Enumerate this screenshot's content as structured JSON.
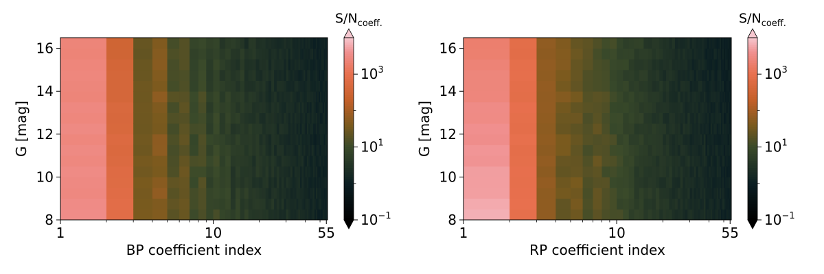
{
  "chart_data": [
    {
      "type": "heatmap",
      "title": "",
      "xlabel": "BP coefficient index",
      "ylabel": "G [mag]",
      "xscale": "log",
      "xlim": [
        1,
        55
      ],
      "ylim": [
        8,
        16.5
      ],
      "xticks": [
        {
          "value": 1,
          "label": "1"
        },
        {
          "value": 10,
          "label": "10"
        },
        {
          "value": 55,
          "label": "55"
        }
      ],
      "yticks": [
        {
          "value": 8,
          "label": "8"
        },
        {
          "value": 10,
          "label": "10"
        },
        {
          "value": 12,
          "label": "12"
        },
        {
          "value": 14,
          "label": "14"
        },
        {
          "value": 16,
          "label": "16"
        }
      ],
      "grid": false,
      "colorbar": {
        "label": "S/N",
        "label_sub": "coeff.",
        "scale": "log",
        "range": [
          0.1,
          10000
        ],
        "ticks": [
          {
            "value": 0.1,
            "base": "10",
            "exp": "−1"
          },
          {
            "value": 10,
            "base": "10",
            "exp": "1"
          },
          {
            "value": 1000,
            "base": "10",
            "exp": "3"
          }
        ],
        "extend": "both"
      },
      "g_bins": [
        8.0,
        8.5,
        9.0,
        9.5,
        10.0,
        10.5,
        11.0,
        11.5,
        12.0,
        12.5,
        13.0,
        13.5,
        14.0,
        14.5,
        15.0,
        15.5,
        16.0
      ],
      "g_bin_width": 0.5,
      "coeff_log10_sn_at_g16": [
        3.4,
        2.5,
        1.4,
        1.7,
        1.1,
        1.2,
        0.9,
        1.0,
        0.7,
        0.9,
        0.6,
        0.7,
        0.6,
        0.5,
        0.6,
        0.4,
        0.5,
        0.5,
        0.4,
        0.4,
        0.4,
        0.4,
        0.3,
        0.4,
        0.3,
        0.3,
        0.3,
        0.3,
        0.3,
        0.3,
        0.2,
        0.3,
        0.2,
        0.2,
        0.2,
        0.2,
        0.2,
        0.2,
        0.2,
        0.2,
        0.2,
        0.2,
        0.1,
        0.2,
        0.1,
        0.1,
        0.1,
        0.1,
        0.1,
        0.1,
        0.1,
        0.1,
        0.1,
        0.1,
        0.1
      ],
      "coeff_log10_sn_at_g8": [
        3.5,
        2.9,
        1.6,
        1.7,
        1.3,
        1.4,
        1.1,
        1.2,
        0.9,
        1.0,
        0.8,
        0.9,
        0.6,
        0.8,
        0.6,
        0.7,
        0.6,
        0.5,
        0.6,
        0.5,
        0.5,
        0.5,
        0.4,
        0.5,
        0.4,
        0.4,
        0.4,
        0.4,
        0.3,
        0.4,
        0.3,
        0.3,
        0.3,
        0.3,
        0.3,
        0.3,
        0.2,
        0.3,
        0.2,
        0.2,
        0.2,
        0.2,
        0.2,
        0.2,
        0.2,
        0.1,
        0.2,
        0.1,
        0.1,
        0.1,
        0.1,
        0.1,
        0.1,
        0.1,
        0.0
      ],
      "coeff_g_slope": [
        0.08,
        0.03,
        0.03,
        0.02,
        0.03,
        0.03,
        0.03,
        0.03,
        0.03,
        0.02,
        0.03,
        0.03,
        0.02,
        0.03,
        0.02,
        0.03,
        0.02,
        0.02,
        0.02,
        0.02,
        0.02,
        0.02,
        0.02,
        0.02,
        0.02,
        0.02,
        0.02,
        0.02,
        0.02,
        0.02,
        0.02,
        0.02,
        0.02,
        0.02,
        0.02,
        0.02,
        0.02,
        0.02,
        0.02,
        0.02,
        0.02,
        0.02,
        0.02,
        0.02,
        0.02,
        0.02,
        0.02,
        0.02,
        0.02,
        0.02,
        0.02,
        0.02,
        0.02,
        0.02,
        0.02
      ]
    },
    {
      "type": "heatmap",
      "title": "",
      "xlabel": "RP coefficient index",
      "ylabel": "G [mag]",
      "xscale": "log",
      "xlim": [
        1,
        55
      ],
      "ylim": [
        8,
        16.5
      ],
      "xticks": [
        {
          "value": 1,
          "label": "1"
        },
        {
          "value": 10,
          "label": "10"
        },
        {
          "value": 55,
          "label": "55"
        }
      ],
      "yticks": [
        {
          "value": 8,
          "label": "8"
        },
        {
          "value": 10,
          "label": "10"
        },
        {
          "value": 12,
          "label": "12"
        },
        {
          "value": 14,
          "label": "14"
        },
        {
          "value": 16,
          "label": "16"
        }
      ],
      "grid": false,
      "colorbar": {
        "label": "S/N",
        "label_sub": "coeff.",
        "scale": "log",
        "range": [
          0.1,
          10000
        ],
        "ticks": [
          {
            "value": 0.1,
            "base": "10",
            "exp": "−1"
          },
          {
            "value": 10,
            "base": "10",
            "exp": "1"
          },
          {
            "value": 1000,
            "base": "10",
            "exp": "3"
          }
        ],
        "extend": "both"
      },
      "g_bins": [
        8.0,
        8.5,
        9.0,
        9.5,
        10.0,
        10.5,
        11.0,
        11.5,
        12.0,
        12.5,
        13.0,
        13.5,
        14.0,
        14.5,
        15.0,
        15.5,
        16.0
      ],
      "g_bin_width": 0.5,
      "coeff_log10_sn_at_g16": [
        3.3,
        2.9,
        1.8,
        1.7,
        1.4,
        1.3,
        1.2,
        1.1,
        1.0,
        0.9,
        0.8,
        0.8,
        0.7,
        0.7,
        0.6,
        0.6,
        0.5,
        0.5,
        0.5,
        0.4,
        0.4,
        0.4,
        0.4,
        0.3,
        0.3,
        0.3,
        0.3,
        0.3,
        0.3,
        0.2,
        0.2,
        0.2,
        0.2,
        0.2,
        0.2,
        0.2,
        0.2,
        0.1,
        0.1,
        0.1,
        0.1,
        0.1,
        0.1,
        0.1,
        0.1,
        0.1,
        0.1,
        0.0,
        0.1,
        0.0,
        0.0,
        0.0,
        0.0,
        0.0,
        0.0
      ],
      "coeff_log10_sn_at_g8": [
        3.8,
        3.0,
        1.8,
        1.4,
        1.5,
        1.1,
        1.4,
        1.2,
        1.1,
        1.0,
        0.9,
        0.8,
        0.7,
        0.7,
        0.6,
        0.6,
        0.6,
        0.6,
        0.5,
        0.5,
        0.5,
        0.5,
        0.4,
        0.4,
        0.4,
        0.4,
        0.4,
        0.3,
        0.4,
        0.3,
        0.3,
        0.3,
        0.3,
        0.3,
        0.3,
        0.2,
        0.3,
        0.2,
        0.2,
        0.2,
        0.2,
        0.2,
        0.2,
        0.2,
        0.2,
        0.2,
        0.2,
        0.1,
        0.2,
        0.1,
        0.1,
        0.1,
        0.1,
        0.1,
        0.0
      ],
      "coeff_g_slope": [
        0.05,
        0.03,
        0.02,
        0.02,
        0.03,
        0.02,
        0.03,
        0.02,
        0.03,
        0.02,
        0.02,
        0.02,
        0.02,
        0.02,
        0.02,
        0.02,
        0.02,
        0.02,
        0.02,
        0.02,
        0.02,
        0.02,
        0.02,
        0.02,
        0.02,
        0.02,
        0.02,
        0.02,
        0.02,
        0.02,
        0.02,
        0.02,
        0.02,
        0.02,
        0.02,
        0.02,
        0.02,
        0.02,
        0.02,
        0.02,
        0.02,
        0.02,
        0.02,
        0.02,
        0.02,
        0.02,
        0.02,
        0.02,
        0.02,
        0.02,
        0.02,
        0.02,
        0.02,
        0.02,
        0.02
      ]
    }
  ],
  "colormap_stops": [
    {
      "value_log10": -1.0,
      "color": "#000000"
    },
    {
      "value_log10": 0.0,
      "color": "#0b1e22"
    },
    {
      "value_log10": 1.0,
      "color": "#3a4a2a"
    },
    {
      "value_log10": 1.6,
      "color": "#7a5a1e"
    },
    {
      "value_log10": 2.3,
      "color": "#c5602a"
    },
    {
      "value_log10": 3.0,
      "color": "#e8704e"
    },
    {
      "value_log10": 3.6,
      "color": "#f09090"
    },
    {
      "value_log10": 4.0,
      "color": "#f6c8d0"
    }
  ]
}
